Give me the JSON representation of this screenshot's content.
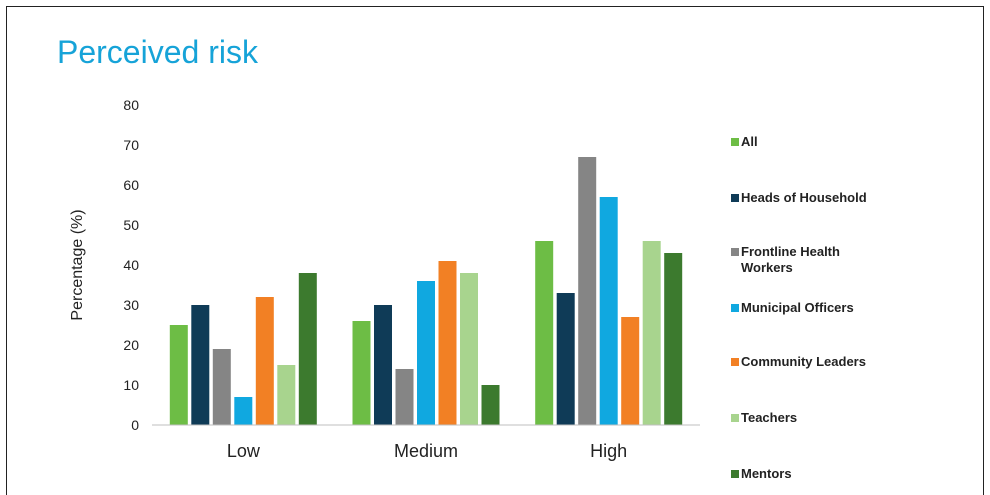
{
  "chart_data": {
    "type": "bar",
    "title": "Perceived risk",
    "ylabel": "Percentage (%)",
    "xlabel": "",
    "ylim": [
      0,
      80
    ],
    "yticks": [
      0,
      10,
      20,
      30,
      40,
      50,
      60,
      70,
      80
    ],
    "categories": [
      "Low",
      "Medium",
      "High"
    ],
    "legend_position": "right",
    "grid": false,
    "series": [
      {
        "name": "All",
        "color": "#6dbd45",
        "values": [
          25,
          26,
          46
        ]
      },
      {
        "name": "Heads of Household",
        "color": "#0f3b57",
        "values": [
          30,
          30,
          33
        ]
      },
      {
        "name": "Frontline Health Workers",
        "color": "#858585",
        "values": [
          19,
          14,
          67
        ]
      },
      {
        "name": "Municipal Officers",
        "color": "#10a8e0",
        "values": [
          7,
          36,
          57
        ]
      },
      {
        "name": "Community Leaders",
        "color": "#f28024",
        "values": [
          32,
          41,
          27
        ]
      },
      {
        "name": "Teachers",
        "color": "#a8d48e",
        "values": [
          15,
          38,
          46
        ]
      },
      {
        "name": "Mentors",
        "color": "#3c7a2e",
        "values": [
          38,
          10,
          43
        ]
      }
    ]
  }
}
